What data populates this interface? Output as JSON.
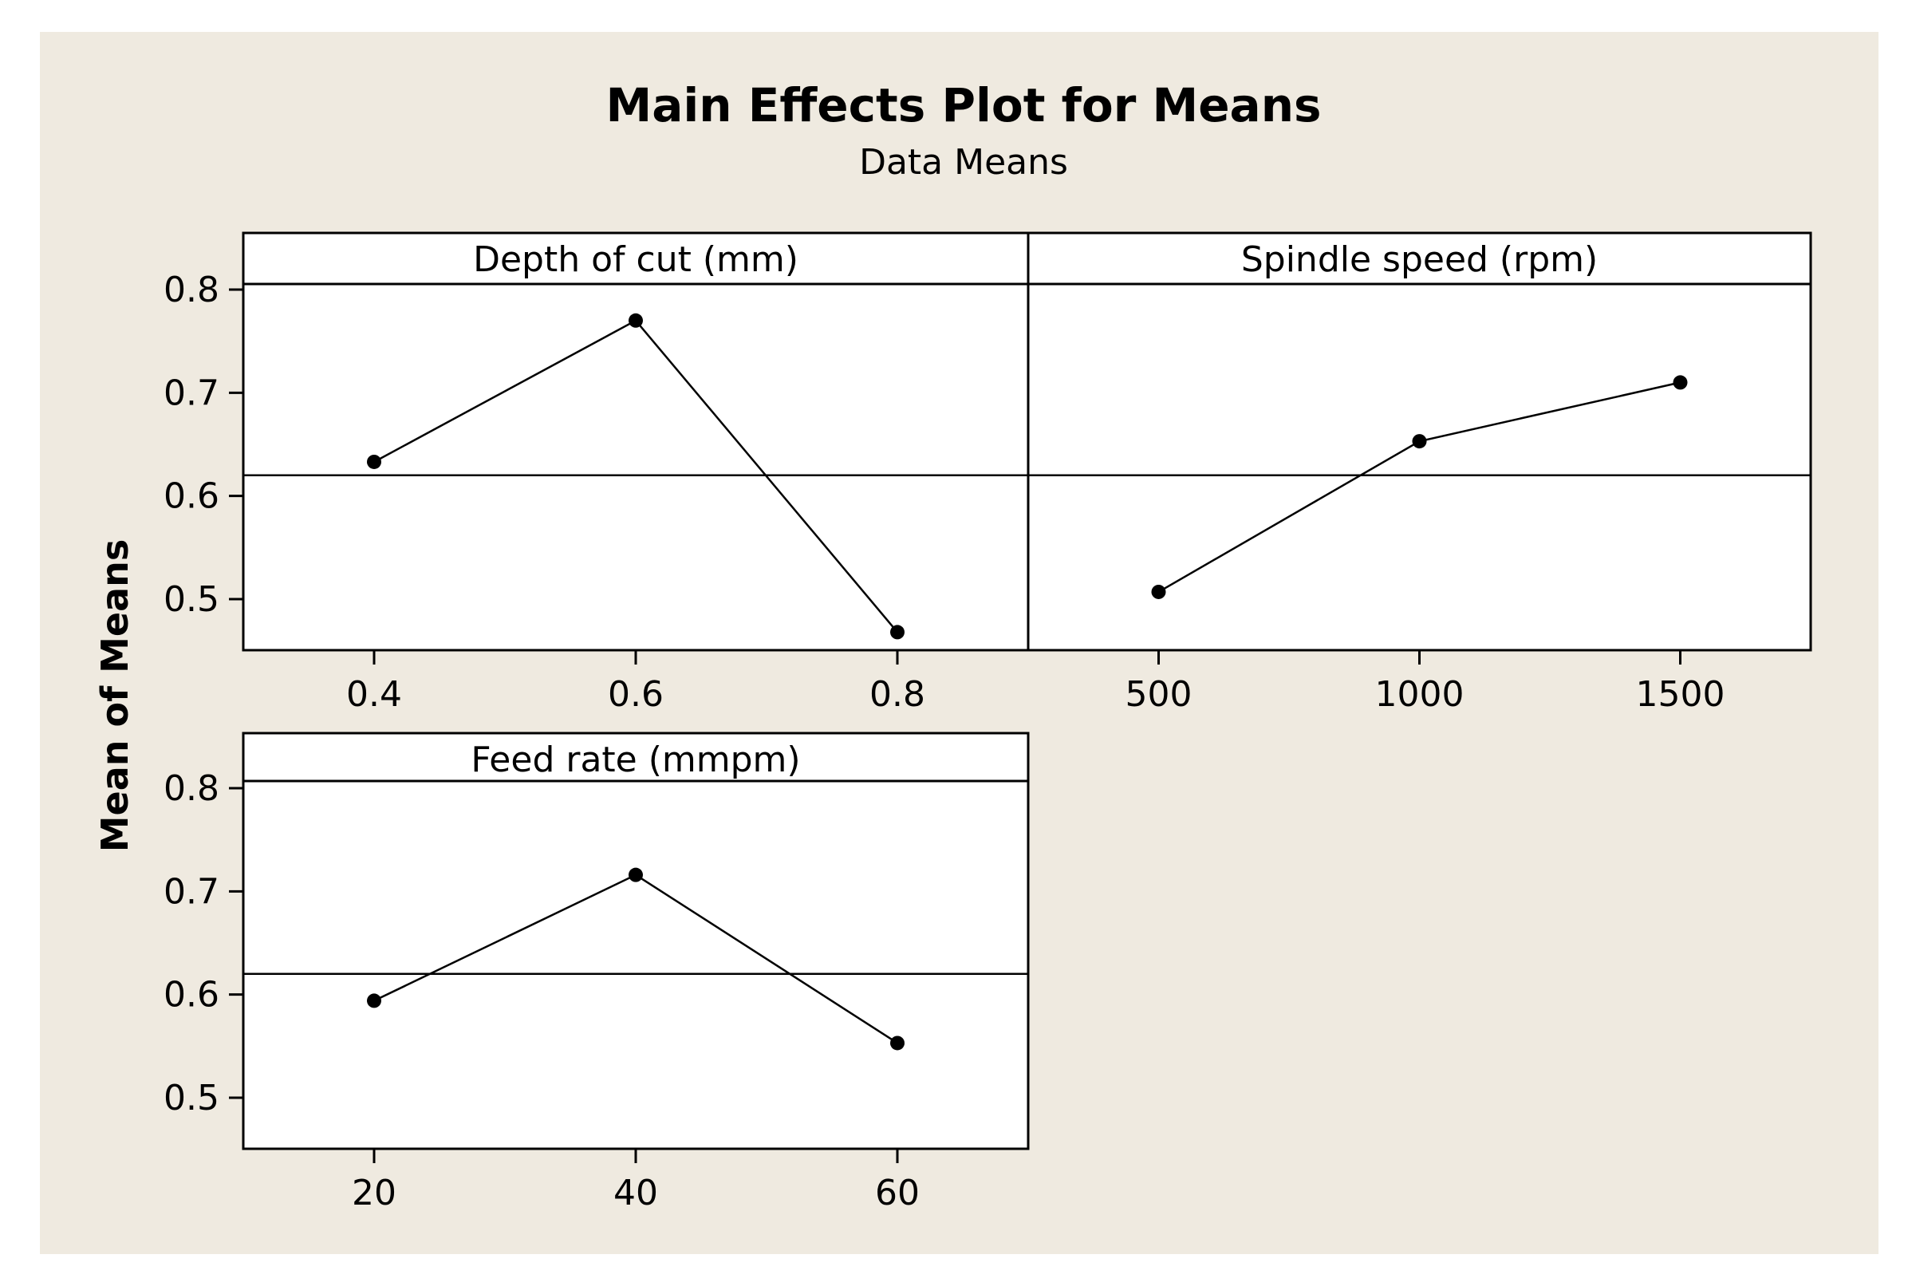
{
  "title": "Main Effects Plot for Means",
  "subtitle": "Data Means",
  "colors": {
    "background": "#efeae0",
    "plot_background": "#ffffff",
    "line": "#000000",
    "outer_background": "#ffffff"
  },
  "chart_data": {
    "type": "line",
    "title": "Main Effects Plot for Means",
    "subtitle": "Data Means",
    "ylabel": "Mean of Means",
    "ylim": [
      0.45,
      0.85
    ],
    "yticks": [
      0.5,
      0.6,
      0.7,
      0.8
    ],
    "ytick_labels": [
      "0.5",
      "0.6",
      "0.7",
      "0.8"
    ],
    "reference_line": 0.62,
    "grid": false,
    "panels": [
      {
        "id": "depth",
        "title": "Depth of cut (mm)",
        "x": [
          0.4,
          0.6,
          0.8
        ],
        "x_labels": [
          "0.4",
          "0.6",
          "0.8"
        ],
        "values": [
          0.633,
          0.77,
          0.468
        ]
      },
      {
        "id": "spindle",
        "title": "Spindle speed (rpm)",
        "x": [
          500,
          1000,
          1500
        ],
        "x_labels": [
          "500",
          "1000",
          "1500"
        ],
        "values": [
          0.507,
          0.653,
          0.71
        ]
      },
      {
        "id": "feed",
        "title": "Feed rate (mmpm)",
        "x": [
          20,
          40,
          60
        ],
        "x_labels": [
          "20",
          "40",
          "60"
        ],
        "values": [
          0.594,
          0.716,
          0.553
        ]
      }
    ]
  }
}
